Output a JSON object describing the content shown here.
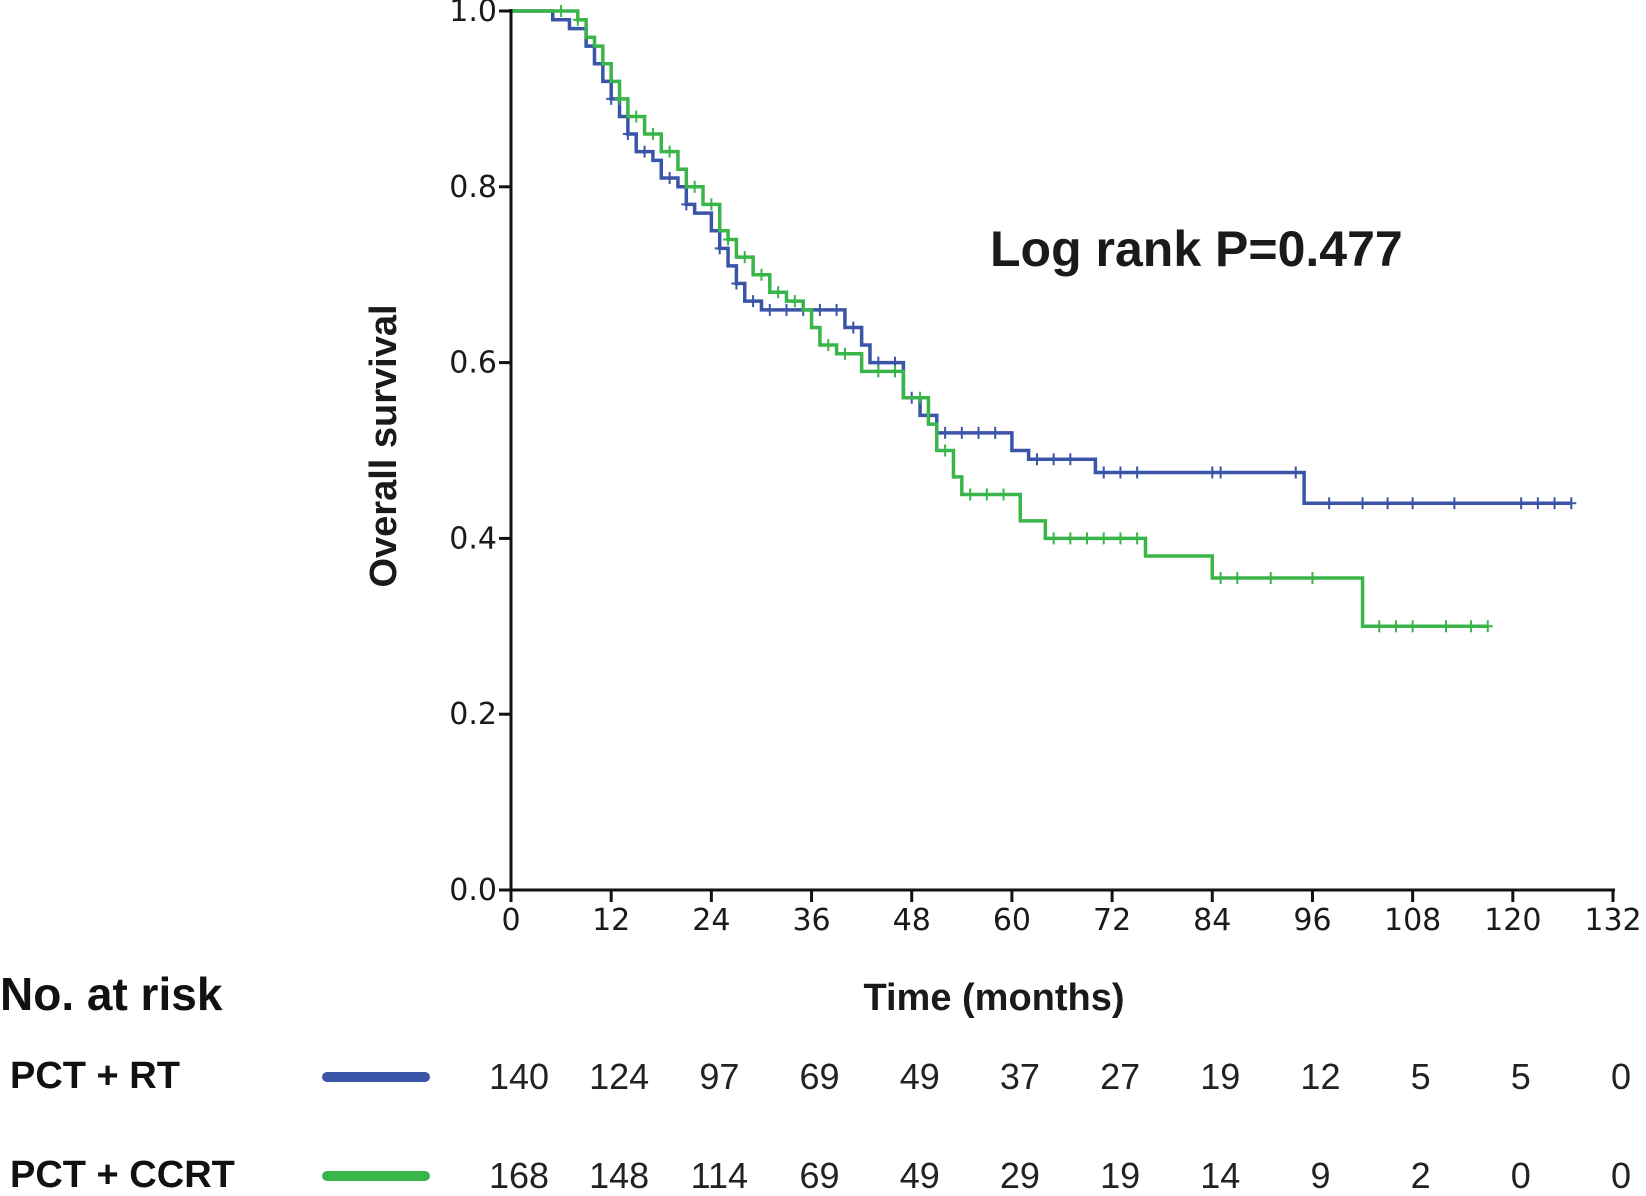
{
  "chart_data": {
    "type": "line",
    "subtype": "kaplan-meier",
    "title": "",
    "xlabel": "Time (months)",
    "ylabel": "Overall survival",
    "xlim": [
      0,
      132
    ],
    "ylim": [
      0.0,
      1.0
    ],
    "x_ticks": [
      0,
      12,
      24,
      36,
      48,
      60,
      72,
      84,
      96,
      108,
      120,
      132
    ],
    "x_tick_labels": [
      "0",
      "12",
      "24",
      "36",
      "48",
      "60",
      "72",
      "84",
      "96",
      "108",
      "120",
      "132"
    ],
    "y_ticks": [
      0.0,
      0.2,
      0.4,
      0.6,
      0.8,
      1.0
    ],
    "y_tick_labels": [
      "0.0",
      "0.2",
      "0.4",
      "0.6",
      "0.8",
      "1.0"
    ],
    "annotation": "Log rank P=0.477",
    "series": [
      {
        "name": "PCT + RT",
        "color": "#3a55a8",
        "steps": [
          [
            0,
            1.0
          ],
          [
            5,
            0.99
          ],
          [
            7,
            0.98
          ],
          [
            9,
            0.96
          ],
          [
            10,
            0.94
          ],
          [
            11,
            0.92
          ],
          [
            12,
            0.9
          ],
          [
            13,
            0.88
          ],
          [
            14,
            0.86
          ],
          [
            15,
            0.84
          ],
          [
            17,
            0.83
          ],
          [
            18,
            0.81
          ],
          [
            20,
            0.8
          ],
          [
            21,
            0.78
          ],
          [
            22,
            0.77
          ],
          [
            24,
            0.75
          ],
          [
            25,
            0.73
          ],
          [
            26,
            0.71
          ],
          [
            27,
            0.69
          ],
          [
            28,
            0.67
          ],
          [
            30,
            0.66
          ],
          [
            40,
            0.64
          ],
          [
            42,
            0.62
          ],
          [
            43,
            0.6
          ],
          [
            47,
            0.56
          ],
          [
            49,
            0.54
          ],
          [
            51,
            0.52
          ],
          [
            60,
            0.5
          ],
          [
            62,
            0.49
          ],
          [
            70,
            0.475
          ],
          [
            95,
            0.44
          ],
          [
            127,
            0.44
          ]
        ],
        "censor": [
          12,
          14,
          16,
          19,
          21,
          25,
          27,
          29,
          31,
          33,
          35,
          37,
          39,
          41,
          44,
          46,
          48,
          50,
          52,
          54,
          56,
          58,
          63,
          65,
          67,
          71,
          73,
          75,
          84,
          85,
          94,
          98,
          102,
          105,
          108,
          113,
          121,
          123,
          125,
          127
        ]
      },
      {
        "name": "PCT + CCRT",
        "color": "#3ab54a",
        "steps": [
          [
            0,
            1.0
          ],
          [
            8,
            0.99
          ],
          [
            9,
            0.97
          ],
          [
            10,
            0.96
          ],
          [
            11,
            0.94
          ],
          [
            12,
            0.92
          ],
          [
            13,
            0.9
          ],
          [
            14,
            0.88
          ],
          [
            16,
            0.86
          ],
          [
            18,
            0.84
          ],
          [
            20,
            0.82
          ],
          [
            21,
            0.8
          ],
          [
            23,
            0.78
          ],
          [
            25,
            0.75
          ],
          [
            26,
            0.74
          ],
          [
            27,
            0.72
          ],
          [
            29,
            0.7
          ],
          [
            31,
            0.68
          ],
          [
            33,
            0.67
          ],
          [
            35,
            0.66
          ],
          [
            36,
            0.64
          ],
          [
            37,
            0.62
          ],
          [
            39,
            0.61
          ],
          [
            42,
            0.59
          ],
          [
            47,
            0.56
          ],
          [
            50,
            0.53
          ],
          [
            51,
            0.5
          ],
          [
            53,
            0.47
          ],
          [
            54,
            0.45
          ],
          [
            61,
            0.42
          ],
          [
            64,
            0.4
          ],
          [
            76,
            0.38
          ],
          [
            84,
            0.355
          ],
          [
            102,
            0.3
          ],
          [
            117,
            0.3
          ]
        ],
        "censor": [
          6,
          8,
          13,
          15,
          17,
          19,
          22,
          24,
          26,
          28,
          30,
          32,
          34,
          38,
          40,
          44,
          46,
          49,
          52,
          55,
          57,
          59,
          65,
          67,
          69,
          71,
          73,
          75,
          85,
          87,
          91,
          96,
          104,
          106,
          108,
          112,
          115,
          117
        ]
      }
    ],
    "risk_table": {
      "title": "No. at risk",
      "time_points": [
        0,
        12,
        24,
        36,
        48,
        60,
        72,
        84,
        96,
        108,
        120,
        132
      ],
      "rows": [
        {
          "label": "PCT + RT",
          "color": "#3a55a8",
          "counts": [
            "140",
            "124",
            "97",
            "69",
            "49",
            "37",
            "27",
            "19",
            "12",
            "5",
            "5",
            "0"
          ]
        },
        {
          "label": "PCT + CCRT",
          "color": "#3ab54a",
          "counts": [
            "168",
            "148",
            "114",
            "69",
            "49",
            "29",
            "19",
            "14",
            "9",
            "2",
            "0",
            "0"
          ]
        }
      ]
    }
  }
}
